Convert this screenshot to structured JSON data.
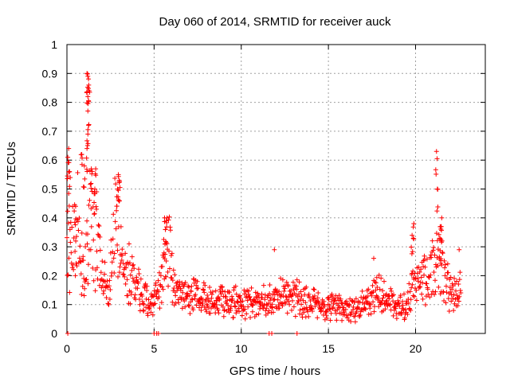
{
  "chart_data": {
    "type": "scatter",
    "title": "Day 060 of 2014, SRMTID for receiver auck",
    "xlabel": "GPS time / hours",
    "ylabel": "SRMTID / TECUs",
    "xlim": [
      0,
      24
    ],
    "ylim": [
      0,
      1
    ],
    "xticks": [
      "0",
      "5",
      "10",
      "15",
      "20"
    ],
    "yticks": [
      "0",
      "0.1",
      "0.2",
      "0.3",
      "0.4",
      "0.5",
      "0.6",
      "0.7",
      "0.8",
      "0.9",
      "1"
    ],
    "grid": true,
    "marker": "plus",
    "color": "#ff0000",
    "trend": {
      "x": [
        0.0,
        0.3,
        0.6,
        1.0,
        1.3,
        1.6,
        2.0,
        2.4,
        2.8,
        3.2,
        3.6,
        4.0,
        4.5,
        5.0,
        5.4,
        5.8,
        6.2,
        7.0,
        8.0,
        9.0,
        10.0,
        11.0,
        12.0,
        13.0,
        14.0,
        15.0,
        16.0,
        17.0,
        18.0,
        18.5,
        19.0,
        19.5,
        20.0,
        20.5,
        21.0,
        21.4,
        21.8,
        22.2,
        22.6
      ],
      "y": [
        0.34,
        0.3,
        0.38,
        0.18,
        0.42,
        0.35,
        0.2,
        0.14,
        0.4,
        0.22,
        0.2,
        0.15,
        0.13,
        0.12,
        0.16,
        0.3,
        0.14,
        0.13,
        0.12,
        0.12,
        0.11,
        0.1,
        0.12,
        0.13,
        0.1,
        0.09,
        0.08,
        0.1,
        0.14,
        0.1,
        0.09,
        0.1,
        0.2,
        0.19,
        0.21,
        0.25,
        0.17,
        0.13,
        0.15
      ]
    },
    "notable_points": [
      {
        "x": 0.1,
        "y": 0.64
      },
      {
        "x": 0.05,
        "y": 0.61
      },
      {
        "x": 0.15,
        "y": 0.56
      },
      {
        "x": 0.5,
        "y": 0.44
      },
      {
        "x": 0.85,
        "y": 0.62
      },
      {
        "x": 1.0,
        "y": 0.58
      },
      {
        "x": 1.15,
        "y": 0.9
      },
      {
        "x": 1.2,
        "y": 0.89
      },
      {
        "x": 1.25,
        "y": 0.86
      },
      {
        "x": 1.2,
        "y": 0.82
      },
      {
        "x": 1.2,
        "y": 0.77
      },
      {
        "x": 1.2,
        "y": 0.69
      },
      {
        "x": 1.15,
        "y": 0.64
      },
      {
        "x": 1.4,
        "y": 0.57
      },
      {
        "x": 1.6,
        "y": 0.5
      },
      {
        "x": 1.65,
        "y": 0.57
      },
      {
        "x": 2.95,
        "y": 0.55
      },
      {
        "x": 3.0,
        "y": 0.53
      },
      {
        "x": 2.9,
        "y": 0.5
      },
      {
        "x": 5.6,
        "y": 0.4
      },
      {
        "x": 5.7,
        "y": 0.39
      },
      {
        "x": 5.65,
        "y": 0.36
      },
      {
        "x": 11.9,
        "y": 0.29
      },
      {
        "x": 21.2,
        "y": 0.63
      },
      {
        "x": 21.25,
        "y": 0.5
      },
      {
        "x": 21.5,
        "y": 0.4
      },
      {
        "x": 21.45,
        "y": 0.37
      },
      {
        "x": 21.4,
        "y": 0.33
      },
      {
        "x": 19.9,
        "y": 0.38
      },
      {
        "x": 19.8,
        "y": 0.34
      },
      {
        "x": 17.6,
        "y": 0.26
      },
      {
        "x": 22.5,
        "y": 0.29
      },
      {
        "x": 0.05,
        "y": 0.0
      },
      {
        "x": 5.0,
        "y": 0.0
      },
      {
        "x": 5.15,
        "y": 0.0
      },
      {
        "x": 5.25,
        "y": 0.0
      },
      {
        "x": 11.6,
        "y": 0.0
      },
      {
        "x": 11.75,
        "y": 0.0
      },
      {
        "x": 13.2,
        "y": 0.0
      }
    ]
  }
}
